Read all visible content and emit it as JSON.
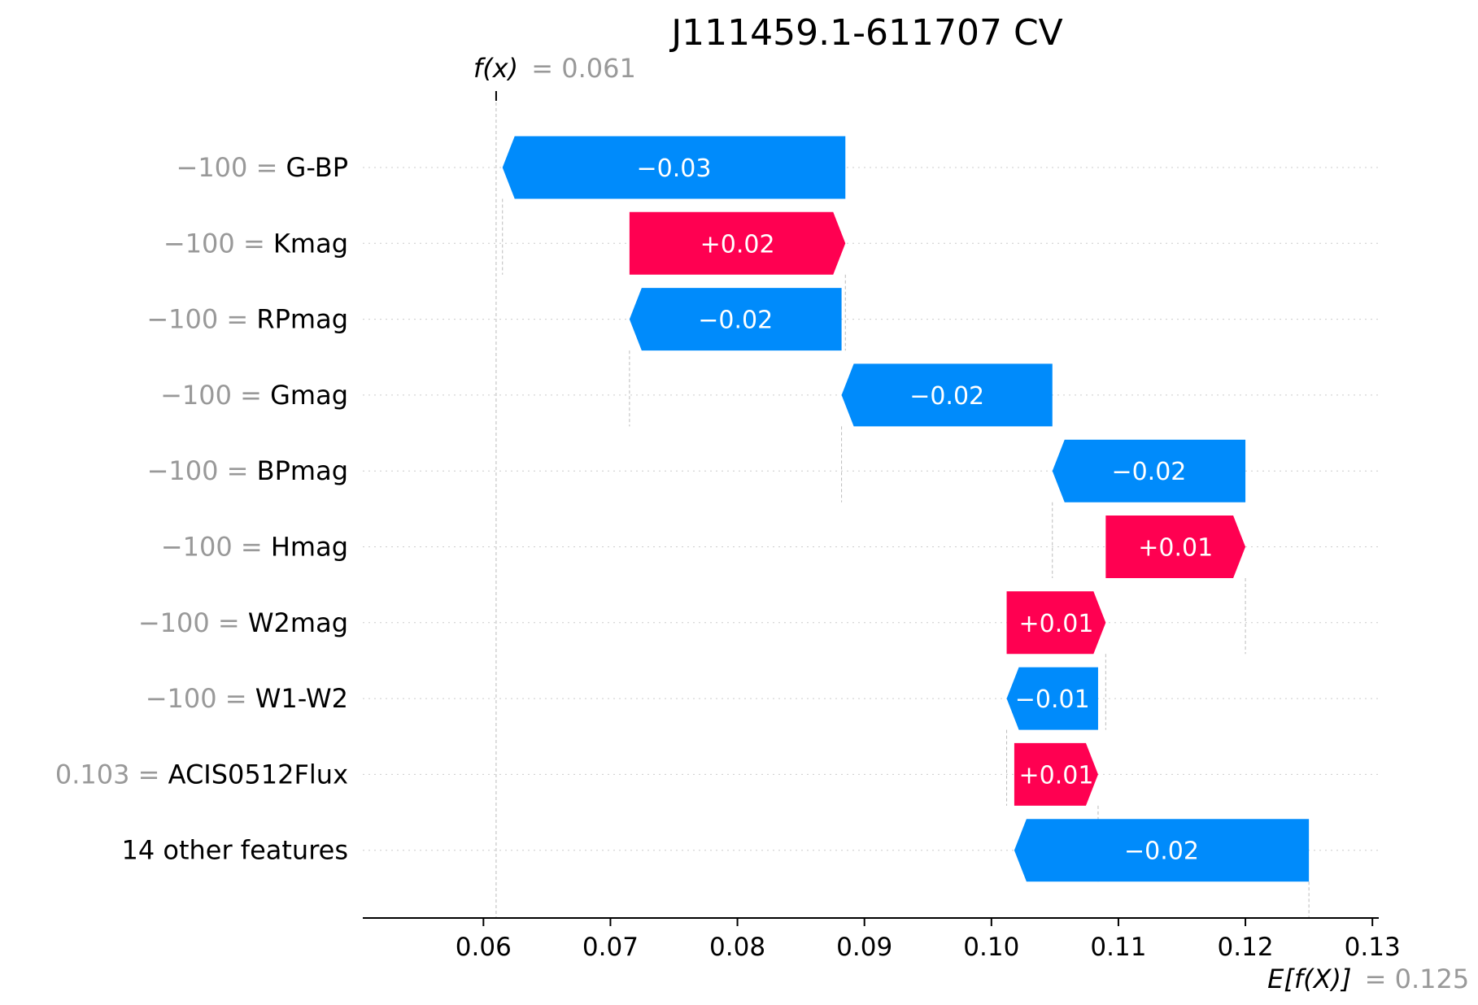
{
  "chart_data": {
    "type": "waterfall",
    "title": "J111459.1-611707 CV",
    "fx_label": "f(x)",
    "fx_value_text": "= 0.061",
    "fx_value": 0.061,
    "efx_label": "E[f(X)]",
    "efx_value_text": "= 0.125",
    "efx_value": 0.125,
    "xlim": [
      0.0505,
      0.1305
    ],
    "xticks": [
      0.06,
      0.07,
      0.08,
      0.09,
      0.1,
      0.11,
      0.12,
      0.13
    ],
    "xtick_labels": [
      "0.06",
      "0.07",
      "0.08",
      "0.09",
      "0.10",
      "0.11",
      "0.12",
      "0.13"
    ],
    "colors": {
      "positive": "#ff0051",
      "negative": "#008bfb",
      "value_text": "#999999",
      "feature_text": "#000000"
    },
    "rows": [
      {
        "value": "−100",
        "feature": "G-BP",
        "start": 0.0885,
        "end": 0.0615,
        "label": "−0.03"
      },
      {
        "value": "−100",
        "feature": "Kmag",
        "start": 0.0715,
        "end": 0.0885,
        "label": "+0.02"
      },
      {
        "value": "−100",
        "feature": "RPmag",
        "start": 0.0882,
        "end": 0.0715,
        "label": "−0.02"
      },
      {
        "value": "−100",
        "feature": "Gmag",
        "start": 0.1048,
        "end": 0.0882,
        "label": "−0.02"
      },
      {
        "value": "−100",
        "feature": "BPmag",
        "start": 0.12,
        "end": 0.1048,
        "label": "−0.02"
      },
      {
        "value": "−100",
        "feature": "Hmag",
        "start": 0.109,
        "end": 0.12,
        "label": "+0.01"
      },
      {
        "value": "−100",
        "feature": "W2mag",
        "start": 0.1012,
        "end": 0.109,
        "label": "+0.01"
      },
      {
        "value": "−100",
        "feature": "W1-W2",
        "start": 0.1084,
        "end": 0.1012,
        "label": "−0.01"
      },
      {
        "value": "0.103",
        "feature": "ACIS0512Flux",
        "start": 0.1018,
        "end": 0.1084,
        "label": "+0.01"
      },
      {
        "value": "",
        "feature": "14 other features",
        "start": 0.125,
        "end": 0.1018,
        "label": "−0.02"
      }
    ]
  }
}
